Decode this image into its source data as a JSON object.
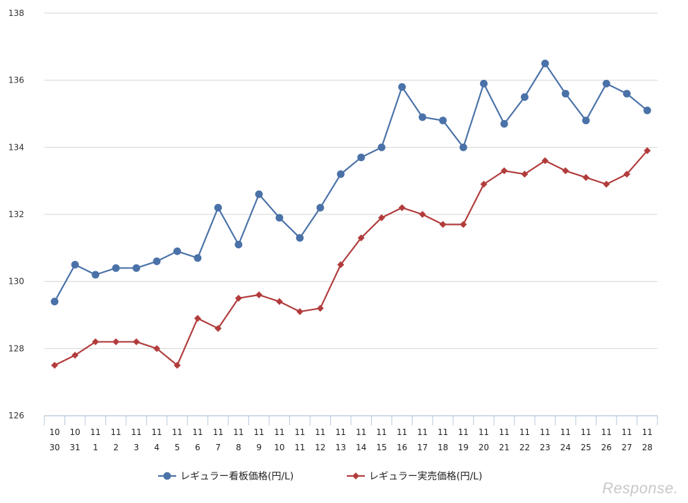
{
  "chart_data": {
    "type": "line",
    "categories": [
      [
        "10",
        "30"
      ],
      [
        "10",
        "31"
      ],
      [
        "11",
        "1"
      ],
      [
        "11",
        "2"
      ],
      [
        "11",
        "3"
      ],
      [
        "11",
        "4"
      ],
      [
        "11",
        "5"
      ],
      [
        "11",
        "6"
      ],
      [
        "11",
        "7"
      ],
      [
        "11",
        "8"
      ],
      [
        "11",
        "9"
      ],
      [
        "11",
        "10"
      ],
      [
        "11",
        "11"
      ],
      [
        "11",
        "12"
      ],
      [
        "11",
        "13"
      ],
      [
        "11",
        "14"
      ],
      [
        "11",
        "15"
      ],
      [
        "11",
        "16"
      ],
      [
        "11",
        "17"
      ],
      [
        "11",
        "18"
      ],
      [
        "11",
        "19"
      ],
      [
        "11",
        "20"
      ],
      [
        "11",
        "21"
      ],
      [
        "11",
        "22"
      ],
      [
        "11",
        "23"
      ],
      [
        "11",
        "24"
      ],
      [
        "11",
        "25"
      ],
      [
        "11",
        "26"
      ],
      [
        "11",
        "27"
      ],
      [
        "11",
        "28"
      ]
    ],
    "series": [
      {
        "name": "レギュラー看板価格(円/L)",
        "color": "#4a72a8",
        "marker": "circle",
        "values": [
          129.4,
          130.5,
          130.2,
          130.4,
          130.4,
          130.6,
          130.9,
          130.7,
          132.2,
          131.1,
          132.6,
          131.9,
          131.3,
          132.2,
          133.2,
          133.7,
          134.0,
          135.8,
          134.9,
          134.8,
          134.0,
          135.9,
          134.7,
          135.5,
          136.5,
          135.6,
          134.8,
          135.9,
          135.6,
          135.1
        ]
      },
      {
        "name": "レギュラー実売価格(円/L)",
        "color": "#b23c3c",
        "marker": "diamond",
        "values": [
          127.5,
          127.8,
          128.2,
          128.2,
          128.2,
          128.0,
          127.5,
          128.9,
          128.6,
          129.5,
          129.6,
          129.4,
          129.1,
          129.2,
          130.5,
          131.3,
          131.9,
          132.2,
          132.0,
          131.7,
          131.7,
          132.9,
          133.3,
          133.2,
          133.6,
          133.3,
          133.1,
          132.9,
          133.2,
          133.9
        ]
      }
    ],
    "yticks": [
      "126",
      "128",
      "130",
      "132",
      "134",
      "136",
      "138"
    ],
    "ylim": [
      126,
      138
    ],
    "grid": true,
    "legend_position": "bottom"
  },
  "watermark": "Response."
}
